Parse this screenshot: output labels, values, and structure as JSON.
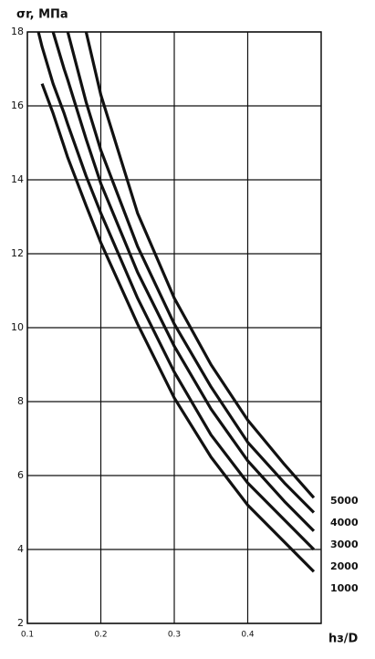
{
  "chart_data": {
    "type": "line",
    "y_label": "σr, МПа",
    "x_label": "hз/D",
    "x": [
      0.115,
      0.12,
      0.135,
      0.15,
      0.155,
      0.18,
      0.2,
      0.25,
      0.3,
      0.35,
      0.4,
      0.45,
      0.49
    ],
    "series": [
      {
        "name": "1000",
        "color": "#111111",
        "values": [
          null,
          16.6,
          15.8,
          14.9,
          14.6,
          13.3,
          12.3,
          10.1,
          8.1,
          6.5,
          5.2,
          4.2,
          3.4
        ]
      },
      {
        "name": "2000",
        "color": "#111111",
        "values": [
          18,
          17.6,
          16.6,
          15.8,
          15.5,
          14.1,
          13.1,
          10.8,
          8.8,
          7.1,
          5.8,
          4.8,
          4.0
        ]
      },
      {
        "name": "3000",
        "color": "#111111",
        "values": [
          null,
          null,
          18,
          17.0,
          16.7,
          15.1,
          13.9,
          11.5,
          9.5,
          7.8,
          6.4,
          5.3,
          4.5
        ]
      },
      {
        "name": "4000",
        "color": "#111111",
        "values": [
          null,
          null,
          null,
          null,
          18,
          16.1,
          14.8,
          12.2,
          10.1,
          8.4,
          6.9,
          5.8,
          5.0
        ]
      },
      {
        "name": "5000",
        "color": "#111111",
        "values": [
          null,
          null,
          null,
          null,
          null,
          18,
          16.3,
          13.1,
          10.8,
          9.0,
          7.5,
          6.3,
          5.4
        ]
      }
    ],
    "xlim": [
      0.1,
      0.5
    ],
    "ylim": [
      2,
      18
    ],
    "xticks": [
      0.1,
      0.2,
      0.3,
      0.4
    ],
    "yticks": [
      2,
      4,
      6,
      8,
      10,
      12,
      14,
      16,
      18
    ],
    "grid": true
  }
}
